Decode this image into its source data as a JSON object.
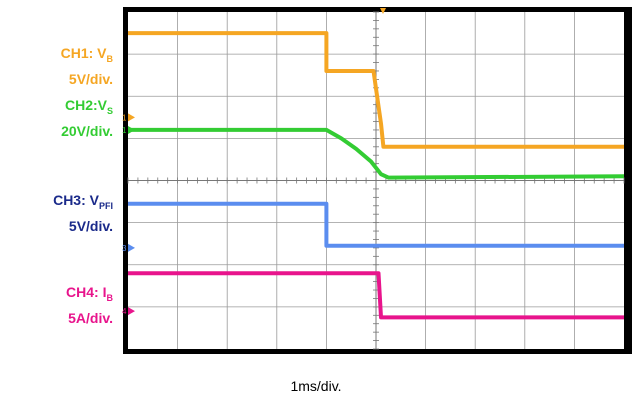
{
  "chart_data": {
    "type": "line",
    "x_unit_label": "1ms/div.",
    "x_range_div": [
      -5,
      5
    ],
    "y_range_div": [
      -4,
      4
    ],
    "grid": true,
    "channels": [
      {
        "id": "CH1",
        "name_main": "CH1: V",
        "name_sub": "B",
        "scale": "5V/div.",
        "color": "#F5A623",
        "marker_text": "1",
        "points": [
          [
            -5,
            3.5
          ],
          [
            -1.0,
            3.5
          ],
          [
            -1.0,
            2.6
          ],
          [
            -0.05,
            2.6
          ],
          [
            0.1,
            1.35
          ],
          [
            0.15,
            0.8
          ],
          [
            5,
            0.8
          ]
        ]
      },
      {
        "id": "CH2",
        "name_main": "CH2:V",
        "name_sub": "S",
        "scale": "20V/div.",
        "color": "#33CC33",
        "marker_text": "1",
        "points": [
          [
            -5,
            1.2
          ],
          [
            -1.0,
            1.2
          ],
          [
            -0.7,
            1.0
          ],
          [
            -0.4,
            0.75
          ],
          [
            -0.1,
            0.45
          ],
          [
            0.1,
            0.15
          ],
          [
            0.25,
            0.07
          ],
          [
            5,
            0.1
          ]
        ]
      },
      {
        "id": "CH3",
        "name_main": "CH3: V",
        "name_sub": "PFI",
        "scale": "5V/div.",
        "color": "#5B8DEF",
        "marker_text": "3",
        "points": [
          [
            -5,
            -0.55
          ],
          [
            -1.0,
            -0.55
          ],
          [
            -1.0,
            -1.55
          ],
          [
            5,
            -1.55
          ]
        ]
      },
      {
        "id": "CH4",
        "name_main": "CH4: I",
        "name_sub": "B",
        "scale": "5A/div.",
        "color": "#E8148C",
        "marker_text": "4",
        "points": [
          [
            -5,
            -2.2
          ],
          [
            0.05,
            -2.2
          ],
          [
            0.1,
            -3.25
          ],
          [
            5,
            -3.25
          ]
        ]
      }
    ]
  }
}
